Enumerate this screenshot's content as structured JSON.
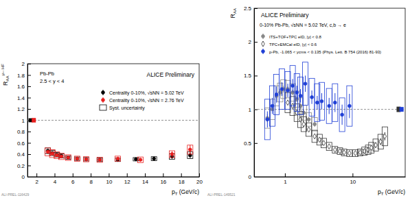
{
  "chart_data": [
    {
      "type": "scatter",
      "ylabel": [
        "R",
        "AA",
        "μ←HF"
      ],
      "xlabel": [
        "p",
        "T",
        " (GeV/c)"
      ],
      "annotations": [
        "Pb-Pb",
        "2.5 < y < 4",
        "ALICE Preliminary"
      ],
      "footnote": "ALI-PREL-116429",
      "xlim": [
        1,
        20
      ],
      "xticks": [
        2,
        4,
        6,
        8,
        10,
        12,
        14,
        16,
        18,
        20
      ],
      "ylim": [
        0,
        2
      ],
      "yticks": [
        0,
        0.2,
        0.4,
        0.6,
        0.8,
        1,
        1.2,
        1.4,
        1.6,
        1.8,
        2
      ],
      "reference": 1,
      "legend": "top-right",
      "syst_label": "Syst. uncertainty",
      "norm": [
        {
          "x": 1.35,
          "value": 1,
          "error": 0.035,
          "color": "#000000"
        },
        {
          "x": 1.7,
          "value": 1,
          "error": 0.04,
          "color": "#e8201f"
        }
      ],
      "series": [
        {
          "name": "Centrality 0-10%, √sNN = 5.02 TeV",
          "color": "#000000",
          "marker": "circle",
          "x": [
            3.25,
            3.75,
            4.25,
            4.75,
            5.5,
            6.5,
            7.5,
            9,
            11,
            13,
            15,
            17,
            19
          ],
          "values": [
            0.46,
            0.42,
            0.39,
            0.37,
            0.34,
            0.32,
            0.31,
            0.3,
            0.3,
            0.31,
            0.32,
            0.36,
            0.38
          ],
          "errors": [
            0.01,
            0.01,
            0.01,
            0.01,
            0.01,
            0.01,
            0.01,
            0.01,
            0.015,
            0.02,
            0.03,
            0.04,
            0.05
          ],
          "syst": [
            0.05,
            0.045,
            0.04,
            0.035,
            0.03,
            0.03,
            0.03,
            0.03,
            0.03,
            0.03,
            0.035,
            0.05,
            0.06
          ]
        },
        {
          "name": "Centrality 0-10%, √sNN = 2.76 TeV",
          "color": "#e8201f",
          "marker": "circle",
          "x": [
            3.25,
            3.75,
            4.25,
            4.75,
            5.5,
            6.5,
            7.5,
            9,
            11,
            13.5,
            17,
            19
          ],
          "values": [
            0.44,
            0.41,
            0.38,
            0.36,
            0.34,
            0.32,
            0.31,
            0.3,
            0.32,
            0.3,
            0.4,
            0.48
          ],
          "errors": [
            0.01,
            0.01,
            0.01,
            0.01,
            0.01,
            0.01,
            0.01,
            0.015,
            0.02,
            0.03,
            0.05,
            0.08
          ],
          "syst": [
            0.07,
            0.07,
            0.06,
            0.055,
            0.05,
            0.045,
            0.045,
            0.045,
            0.045,
            0.05,
            0.06,
            0.08
          ]
        }
      ]
    },
    {
      "type": "scatter",
      "ylabel": [
        "R",
        "AA"
      ],
      "xlabel": [
        "p",
        "T",
        " (GeV/c)"
      ],
      "annotations": [
        "ALICE Preliminary",
        "0-10% Pb-Pb, √sNN = 5.02 TeV, c,b → e"
      ],
      "footnote": "ALI-PREL-149521",
      "log": "x",
      "xlim": [
        0.35,
        60
      ],
      "xticks": [
        1,
        10
      ],
      "ylim": [
        0,
        2.5
      ],
      "yticks": [
        0,
        0.5,
        1,
        1.5,
        2,
        2.5
      ],
      "reference": 1,
      "legend": "top-left",
      "norm": [
        {
          "x": 48,
          "value": 1,
          "error": 0.04,
          "color": "#333333"
        },
        {
          "x": 53,
          "value": 1,
          "error": 0.035,
          "color": "#1f3fd6"
        }
      ],
      "series": [
        {
          "name": "ITS+TOF+TPC eID, |y| < 0.8",
          "color": "#888888",
          "marker": "circle",
          "x": [
            0.55,
            0.65,
            0.75,
            0.85,
            0.95,
            1.1,
            1.3,
            1.5,
            1.7,
            1.9,
            2.25,
            2.75
          ],
          "values": [
            0.87,
            1.0,
            1.2,
            1.25,
            1.3,
            1.3,
            1.25,
            1.15,
            1.05,
            0.95,
            0.85,
            0.78
          ],
          "errors": [
            0.06,
            0.05,
            0.05,
            0.05,
            0.05,
            0.04,
            0.04,
            0.04,
            0.04,
            0.04,
            0.04,
            0.04
          ],
          "syst": [
            0.15,
            0.15,
            0.15,
            0.14,
            0.14,
            0.13,
            0.13,
            0.12,
            0.12,
            0.11,
            0.1,
            0.1
          ]
        },
        {
          "name": "TPC+EMCal eID, |y| < 0.6",
          "color": "#333333",
          "marker": "diamond-open",
          "x": [
            1.1,
            1.3,
            1.5,
            1.7,
            1.9,
            2.25,
            2.75,
            3.25,
            3.75,
            4.5,
            5.5,
            6.5,
            7.5,
            9,
            11,
            13,
            15,
            17,
            19,
            22,
            26,
            30
          ],
          "values": [
            1.1,
            1.05,
            0.95,
            0.85,
            0.78,
            0.7,
            0.6,
            0.55,
            0.5,
            0.45,
            0.4,
            0.38,
            0.36,
            0.35,
            0.35,
            0.36,
            0.38,
            0.4,
            0.43,
            0.47,
            0.52,
            0.6
          ],
          "errors": [
            0.03,
            0.03,
            0.03,
            0.02,
            0.02,
            0.02,
            0.02,
            0.02,
            0.02,
            0.02,
            0.02,
            0.02,
            0.02,
            0.02,
            0.02,
            0.02,
            0.03,
            0.03,
            0.03,
            0.04,
            0.05,
            0.06
          ],
          "syst": [
            0.15,
            0.14,
            0.13,
            0.12,
            0.11,
            0.1,
            0.09,
            0.08,
            0.07,
            0.06,
            0.05,
            0.05,
            0.05,
            0.05,
            0.05,
            0.05,
            0.06,
            0.07,
            0.08,
            0.09,
            0.11,
            0.14
          ]
        },
        {
          "name": "p-Pb, -1.065 < ycms < 0.135 (Phys. Lett. B 754 (2016) 81-93)",
          "color": "#1f3fd6",
          "marker": "circle",
          "x": [
            0.55,
            0.65,
            0.75,
            0.9,
            1.1,
            1.3,
            1.5,
            1.7,
            2.0,
            2.5,
            3.0,
            3.5,
            4.5,
            5.5,
            7.0,
            9.0
          ],
          "values": [
            0.85,
            1.05,
            1.22,
            1.3,
            1.28,
            1.35,
            1.25,
            1.2,
            1.38,
            1.18,
            1.1,
            1.12,
            1.05,
            1.1,
            0.92,
            1.05
          ],
          "errors": [
            0.12,
            0.12,
            0.12,
            0.1,
            0.1,
            0.1,
            0.1,
            0.1,
            0.12,
            0.1,
            0.1,
            0.12,
            0.12,
            0.14,
            0.15,
            0.18
          ],
          "syst": [
            0.3,
            0.3,
            0.3,
            0.3,
            0.28,
            0.3,
            0.28,
            0.28,
            0.32,
            0.28,
            0.28,
            0.28,
            0.26,
            0.28,
            0.25,
            0.3
          ]
        }
      ]
    }
  ]
}
